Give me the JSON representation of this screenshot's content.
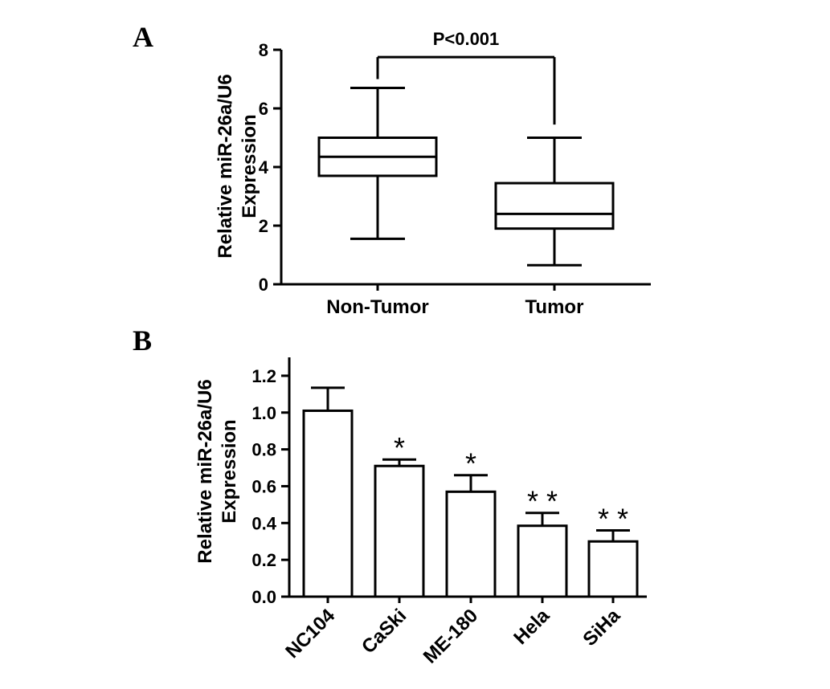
{
  "panels": {
    "a_label": "A",
    "b_label": "B"
  },
  "chart_data": [
    {
      "type": "box",
      "title": "",
      "ylabel": [
        "Relative miR-26a/U6",
        "Expression"
      ],
      "ylim": [
        0,
        8
      ],
      "yticks": [
        0,
        2,
        4,
        6,
        8
      ],
      "categories": [
        "Non-Tumor",
        "Tumor"
      ],
      "boxes": [
        {
          "category": "Non-Tumor",
          "min": 1.55,
          "q1": 3.7,
          "median": 4.35,
          "q3": 5.0,
          "max": 6.7
        },
        {
          "category": "Tumor",
          "min": 0.65,
          "q1": 1.9,
          "median": 2.4,
          "q3": 3.45,
          "max": 5.0
        }
      ],
      "annotation": {
        "text": "P<0.001",
        "from": "Non-Tumor",
        "to": "Tumor",
        "y": 7.75
      }
    },
    {
      "type": "bar",
      "title": "",
      "ylabel": [
        "Relative miR-26a/U6",
        "Expression"
      ],
      "ylim": [
        0,
        1.3
      ],
      "yticks": [
        "0.0",
        "0.2",
        "0.4",
        "0.6",
        "0.8",
        "1.0",
        "1.2"
      ],
      "categories": [
        "NC104",
        "CaSki",
        "ME-180",
        "Hela",
        "SiHa"
      ],
      "values": [
        1.01,
        0.71,
        0.57,
        0.385,
        0.3
      ],
      "errors": [
        0.125,
        0.035,
        0.09,
        0.07,
        0.06
      ],
      "significance": [
        "",
        "*",
        "*",
        "* *",
        "* *"
      ]
    }
  ]
}
